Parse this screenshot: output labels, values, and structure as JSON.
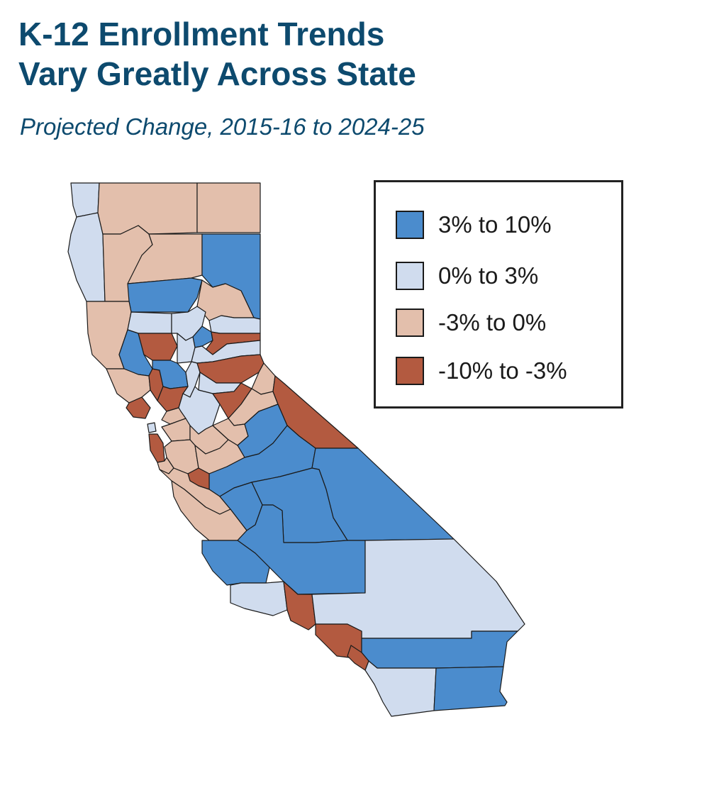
{
  "title_line1": "K-12 Enrollment Trends",
  "title_line2": "Vary Greatly Across State",
  "subtitle": "Projected Change, 2015-16 to 2024-25",
  "legend": [
    {
      "label": "3% to 10%",
      "color": "#4b8ccd"
    },
    {
      "label": "0% to 3%",
      "color": "#d0dcee"
    },
    {
      "label": "-3% to 0%",
      "color": "#e3bfac"
    },
    {
      "label": "-10% to -3%",
      "color": "#b35a40"
    }
  ],
  "colors": {
    "title": "#0d4a6e",
    "border": "#1a1a1a"
  }
}
